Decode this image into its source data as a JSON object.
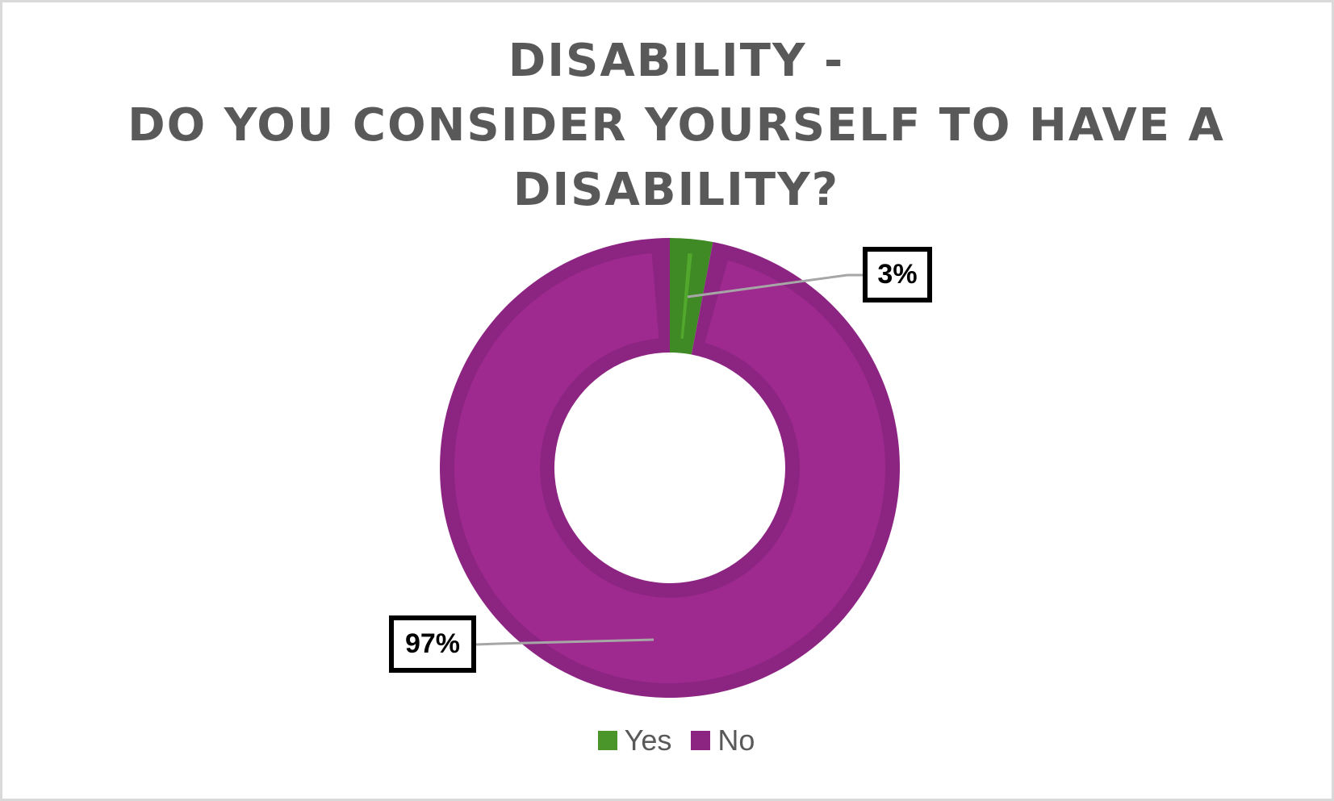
{
  "chart_data": {
    "type": "pie",
    "subtype": "doughnut",
    "title": "DISABILITY - DO YOU CONSIDER YOURSELF TO HAVE A DISABILITY?",
    "title_lines": [
      "DISABILITY -",
      "DO YOU CONSIDER YOURSELF TO HAVE A",
      "DISABILITY?"
    ],
    "categories": [
      "Yes",
      "No"
    ],
    "values": [
      3,
      97
    ],
    "unit": "%",
    "data_labels": [
      "3%",
      "97%"
    ],
    "colors": [
      "#4a962b",
      "#9e2a8f"
    ],
    "border_colors": [
      "#3f8a24",
      "#8c2582"
    ],
    "legend": {
      "position": "bottom",
      "entries": [
        {
          "label": "Yes",
          "color": "#4a962b"
        },
        {
          "label": "No",
          "color": "#8c2582"
        }
      ]
    },
    "grid": false
  }
}
